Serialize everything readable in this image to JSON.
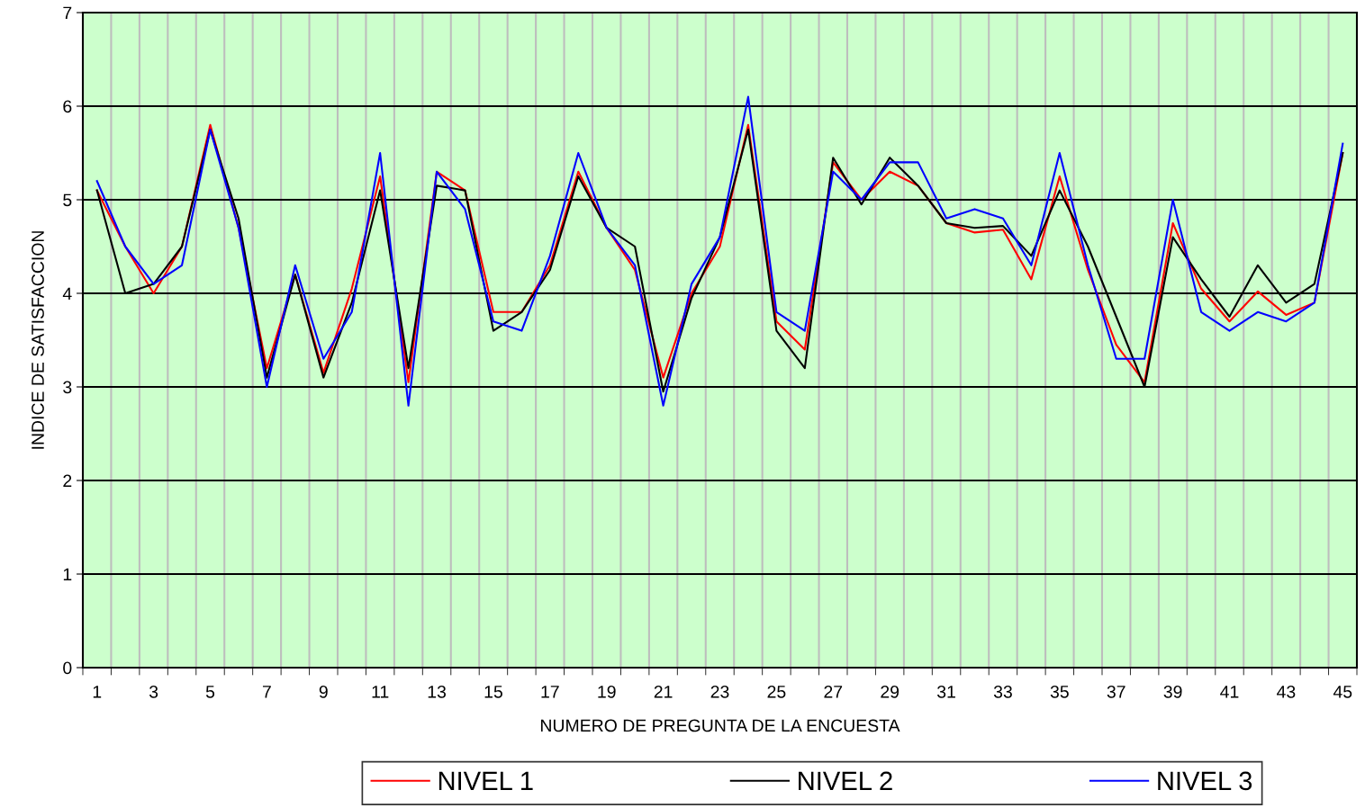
{
  "chart_data": {
    "type": "line",
    "xlabel": "NUMERO DE PREGUNTA DE LA ENCUESTA",
    "ylabel": "INDICE DE SATISFACCION",
    "categories": [
      "1",
      null,
      "3",
      null,
      "5",
      null,
      "7",
      null,
      "9",
      null,
      "11",
      null,
      "13",
      null,
      "15",
      null,
      "17",
      null,
      "19",
      null,
      "21",
      null,
      "23",
      null,
      "25",
      null,
      "27",
      null,
      "29",
      null,
      "31",
      null,
      "33",
      null,
      "35",
      null,
      "37",
      null,
      "39",
      null,
      "41",
      null,
      "43",
      null,
      "45"
    ],
    "series": [
      {
        "name": "NIVEL 1",
        "color": "#ff0000",
        "values": [
          5.1,
          4.5,
          4.0,
          4.5,
          5.8,
          4.7,
          3.2,
          4.2,
          3.15,
          4.05,
          5.25,
          3.05,
          5.3,
          5.1,
          3.8,
          3.8,
          4.3,
          5.3,
          4.7,
          4.25,
          3.1,
          4.0,
          4.5,
          5.8,
          3.7,
          3.4,
          5.4,
          5.0,
          5.3,
          5.15,
          4.75,
          4.65,
          4.68,
          4.15,
          5.25,
          4.25,
          3.45,
          3.05,
          4.75,
          4.05,
          3.7,
          4.02,
          3.77,
          3.9,
          5.5
        ]
      },
      {
        "name": "NIVEL 2",
        "color": "#000000",
        "values": [
          5.1,
          4.0,
          4.1,
          4.5,
          5.75,
          4.8,
          3.1,
          4.2,
          3.1,
          3.9,
          5.1,
          3.2,
          5.15,
          5.1,
          3.6,
          3.8,
          4.25,
          5.25,
          4.7,
          4.5,
          2.95,
          3.95,
          4.6,
          5.75,
          3.6,
          3.2,
          5.45,
          4.95,
          5.45,
          5.15,
          4.75,
          4.7,
          4.72,
          4.4,
          5.1,
          4.5,
          3.75,
          3.0,
          4.6,
          4.15,
          3.75,
          4.3,
          3.9,
          4.1,
          5.5
        ]
      },
      {
        "name": "NIVEL 3",
        "color": "#0000ff",
        "values": [
          5.2,
          4.5,
          4.1,
          4.3,
          5.75,
          4.7,
          3.0,
          4.3,
          3.3,
          3.8,
          5.5,
          2.8,
          5.3,
          4.9,
          3.7,
          3.6,
          4.4,
          5.5,
          4.7,
          4.3,
          2.8,
          4.1,
          4.6,
          6.1,
          3.8,
          3.6,
          5.3,
          5.0,
          5.4,
          5.4,
          4.8,
          4.9,
          4.8,
          4.3,
          5.5,
          4.3,
          3.3,
          3.3,
          5.0,
          3.8,
          3.6,
          3.8,
          3.7,
          3.9,
          5.6
        ]
      }
    ],
    "ylim": [
      0,
      7
    ],
    "yticks": [
      0,
      1,
      2,
      3,
      4,
      5,
      6,
      7
    ],
    "grid": true,
    "legend": "bottom",
    "marker": "none",
    "line_style": "solid"
  }
}
